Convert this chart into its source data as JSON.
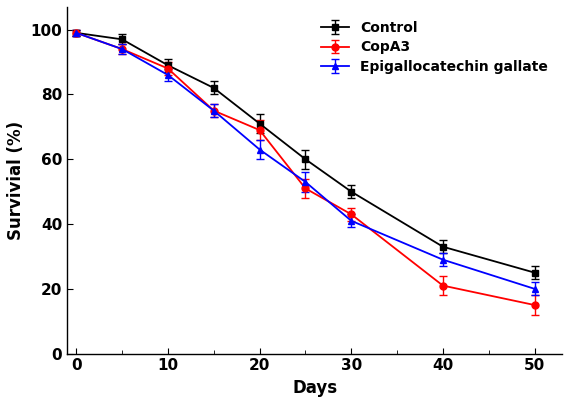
{
  "days": [
    0,
    5,
    10,
    15,
    20,
    25,
    30,
    40,
    50
  ],
  "control": {
    "y": [
      99,
      97,
      89,
      82,
      71,
      60,
      50,
      33,
      25
    ],
    "yerr": [
      1,
      1.5,
      2,
      2,
      3,
      3,
      2,
      2,
      2
    ],
    "color": "#000000",
    "marker": "s",
    "label": "Control"
  },
  "copa3": {
    "y": [
      99,
      94,
      88,
      75,
      69,
      51,
      43,
      21,
      15
    ],
    "yerr": [
      1,
      1.5,
      2,
      2,
      3,
      3,
      2,
      3,
      3
    ],
    "color": "#ff0000",
    "marker": "o",
    "label": "CopA3"
  },
  "egcg": {
    "y": [
      99,
      94,
      86,
      75,
      63,
      53,
      41,
      29,
      20
    ],
    "yerr": [
      1,
      1.5,
      2,
      2,
      3,
      3,
      2,
      2,
      2
    ],
    "color": "#0000ff",
    "marker": "^",
    "label": "Epigallocatechin gallate"
  },
  "xlabel": "Days",
  "ylabel": "Survivial (%)",
  "xlim": [
    -1,
    53
  ],
  "ylim": [
    0,
    107
  ],
  "xticks_major": [
    0,
    10,
    20,
    30,
    40,
    50
  ],
  "xticks_minor": [
    5,
    15,
    25,
    35,
    45
  ],
  "yticks": [
    0,
    20,
    40,
    60,
    80,
    100
  ],
  "legend_loc": "upper right",
  "markersize": 5,
  "linewidth": 1.3,
  "capsize": 3,
  "elinewidth": 1.0
}
